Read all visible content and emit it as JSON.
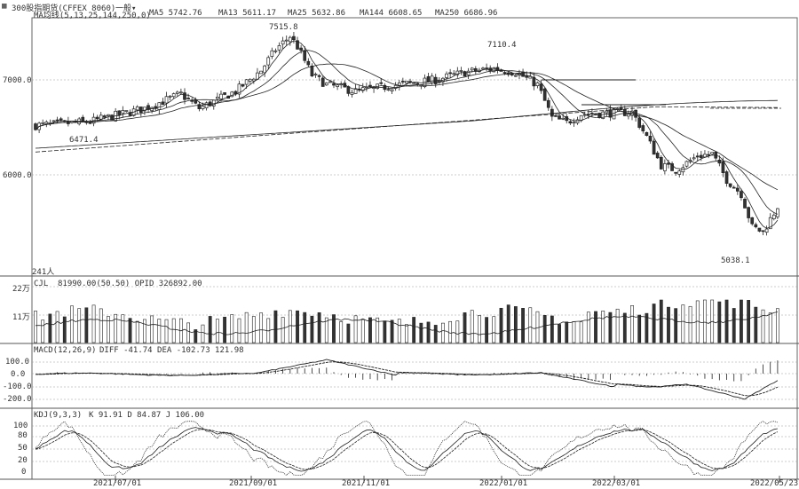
{
  "toolbar": {
    "window_icon": "grid-icon",
    "main_title": "MA均线(5,13,25,144,250,0)",
    "ma_values": [
      "MA5 5742.76",
      "MA13 5611.17",
      "MA25 5632.86",
      "MA144 6608.65",
      "MA250 6686.96"
    ],
    "instrument_label": "300股指期货(CFFEX 8060)",
    "period_label": "一般",
    "period_dropdown_icon": "chevron-down-icon"
  },
  "panels": {
    "price": {
      "y_ticks": [
        "7000.0",
        "6000.0"
      ],
      "corner_label": "241人",
      "annotations": [
        "7515.8",
        "7110.4",
        "6471.4",
        "5038.1"
      ]
    },
    "volume": {
      "title": "CJL",
      "values_text": "81990.00(50.50) OPID 326892.00",
      "y_ticks": [
        "22万",
        "11万"
      ]
    },
    "macd": {
      "title": "MACD(12,26,9)",
      "values_text": "DIFF -41.74  DEA -102.73  121.98",
      "y_ticks": [
        "100.0",
        "0.0",
        "-100.0",
        "-200.0"
      ]
    },
    "kdj": {
      "title": "KDJ(9,3,3)",
      "values_text": "K 91.91  D 84.87  J 106.00",
      "y_ticks": [
        "100",
        "80",
        "50",
        "20",
        "0"
      ]
    }
  },
  "x_labels": [
    "2021/07/01",
    "2021/09/01",
    "2021/11/01",
    "2022/01/01",
    "2022/03/01",
    "2022/05/23"
  ],
  "colors": {
    "up": "#ffffff",
    "down": "#333333",
    "line": "#222222",
    "grid": "#999999"
  },
  "chart_data": [
    {
      "type": "candlestick",
      "title": "MA均线(5,13,25,144,250,0)",
      "x": [
        "2021/07/01",
        "2021/08/01",
        "2021/09/01",
        "2021/10/01",
        "2021/11/01",
        "2021/12/01",
        "2022/01/01",
        "2022/02/01",
        "2022/03/01",
        "2022/04/01",
        "2022/05/01",
        "2022/05/23"
      ],
      "close_approx": [
        6600,
        6900,
        7350,
        6950,
        6950,
        7050,
        7050,
        6550,
        6550,
        6050,
        5300,
        5742
      ],
      "ylim": [
        5000,
        7700
      ],
      "annotations": [
        {
          "label": "7515.8",
          "x": "2021/09"
        },
        {
          "label": "7110.4",
          "x": "2021/12"
        },
        {
          "label": "6471.4",
          "x": "2021/06"
        },
        {
          "label": "5038.1",
          "x": "2022/04"
        }
      ]
    },
    {
      "type": "bar",
      "title": "CJL",
      "ylim": [
        0,
        220000
      ],
      "last_value": 81990
    },
    {
      "type": "line",
      "title": "MACD(12,26,9)",
      "series": [
        {
          "name": "DIFF",
          "last": -41.74
        },
        {
          "name": "DEA",
          "last": -102.73
        }
      ],
      "ylim": [
        -250,
        120
      ]
    },
    {
      "type": "line",
      "title": "KDJ(9,3,3)",
      "series": [
        {
          "name": "K",
          "last": 91.91
        },
        {
          "name": "D",
          "last": 84.87
        },
        {
          "name": "J",
          "last": 106.0
        }
      ],
      "ylim": [
        0,
        110
      ]
    }
  ]
}
